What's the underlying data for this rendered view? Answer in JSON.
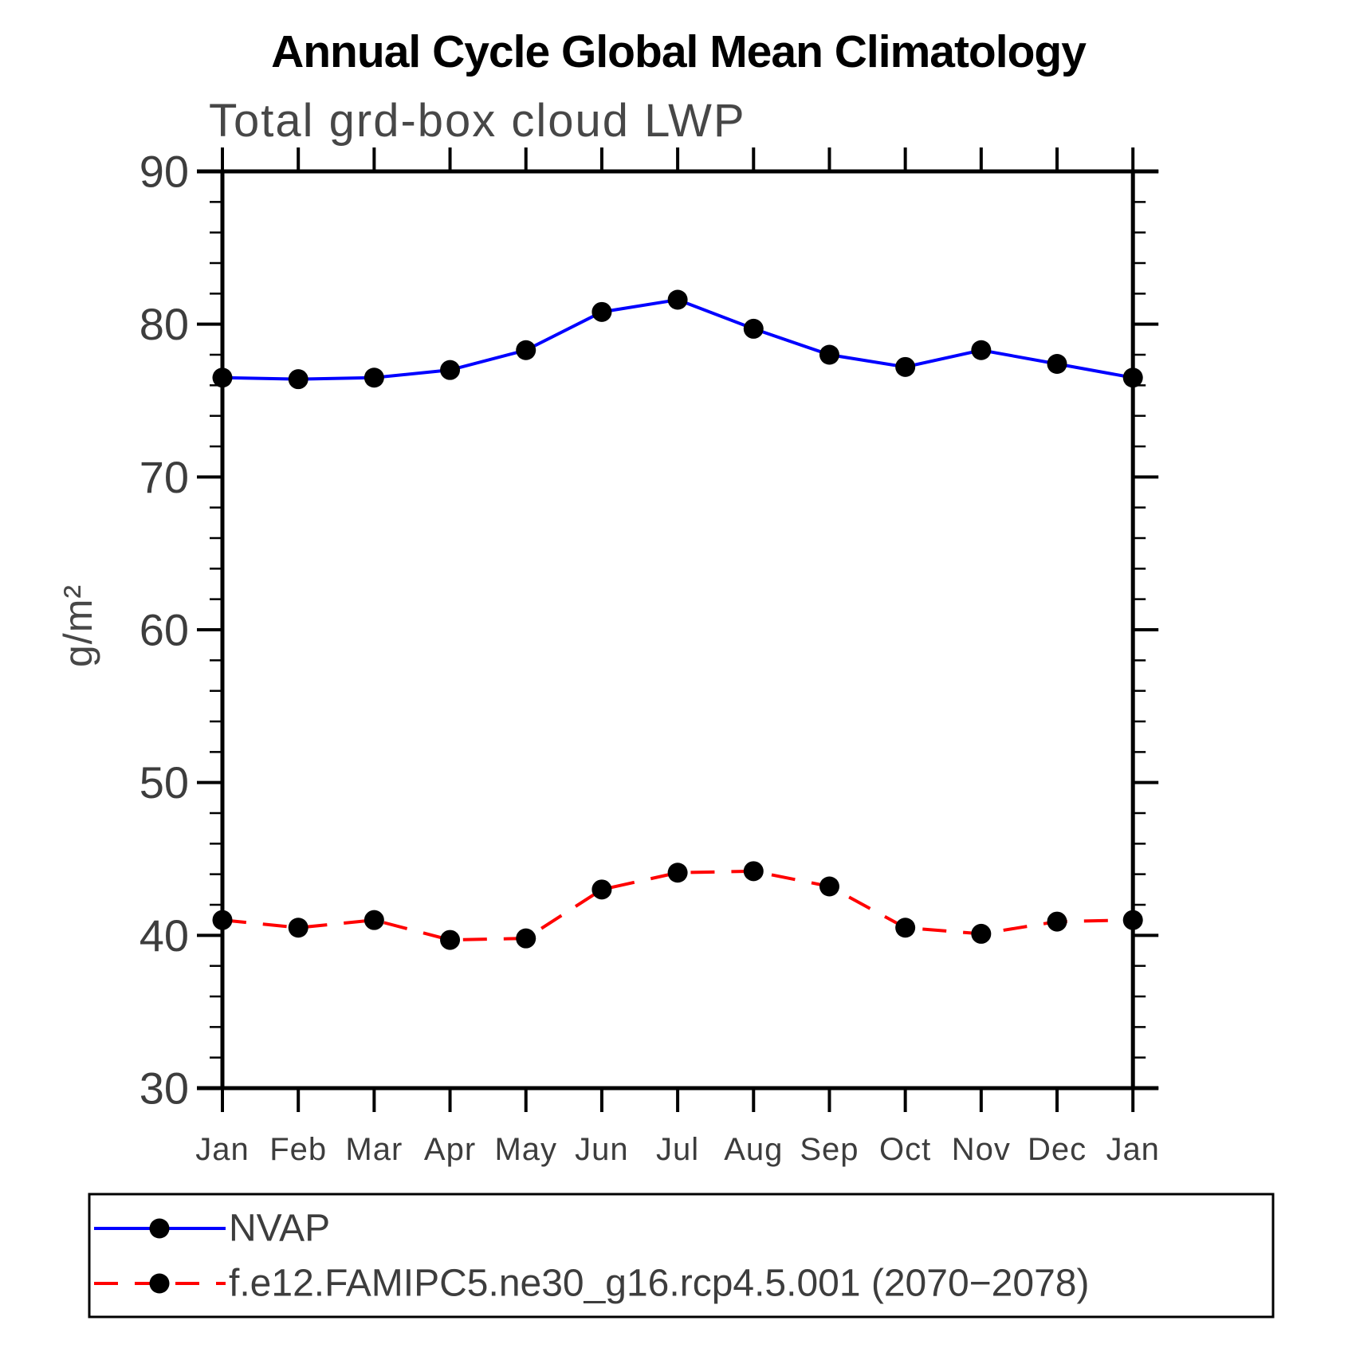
{
  "title": "Annual Cycle Global Mean Climatology",
  "subtitle": "Total grd-box cloud LWP",
  "ylabel": "g/m²",
  "chart_data": {
    "type": "line",
    "categories": [
      "Jan",
      "Feb",
      "Mar",
      "Apr",
      "May",
      "Jun",
      "Jul",
      "Aug",
      "Sep",
      "Oct",
      "Nov",
      "Dec",
      "Jan"
    ],
    "series": [
      {
        "name": "NVAP",
        "color": "#0000ff",
        "line_style": "solid",
        "marker": "filled-circle",
        "marker_color": "#000000",
        "values": [
          76.5,
          76.4,
          76.5,
          77.0,
          78.3,
          80.8,
          81.6,
          79.7,
          78.0,
          77.2,
          78.3,
          77.4,
          76.5
        ]
      },
      {
        "name": "f.e12.FAMIPC5.ne30_g16.rcp4.5.001 (2070−2078)",
        "color": "#ff0000",
        "line_style": "dashed",
        "marker": "filled-circle",
        "marker_color": "#000000",
        "values": [
          41.0,
          40.5,
          41.0,
          39.7,
          39.8,
          43.0,
          44.1,
          44.2,
          43.2,
          40.5,
          40.1,
          40.9,
          41.0
        ]
      }
    ],
    "ylim": [
      30,
      90
    ],
    "ytick_major_step": 10,
    "ytick_minor_step": 2,
    "grid": false,
    "legend_position": "bottom",
    "axis_color": "#000000"
  }
}
